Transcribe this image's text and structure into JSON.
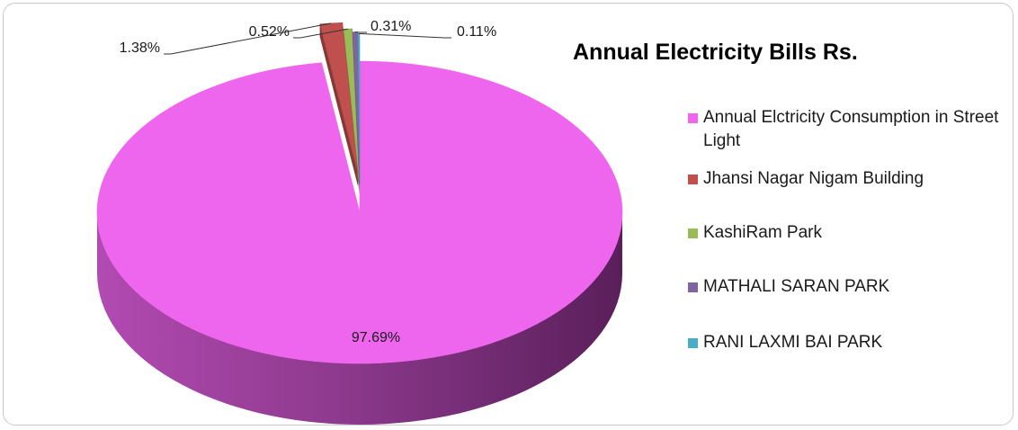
{
  "chart_data": {
    "type": "pie",
    "title": "Annual Electricity Bills Rs.",
    "series": [
      {
        "name": "Annual Elctricity Consumption in Street Light",
        "value": 97.69,
        "label": "97.69%",
        "color": "#ee66ee"
      },
      {
        "name": "Jhansi Nagar Nigam Building",
        "value": 1.38,
        "label": "1.38%",
        "color": "#c0504d"
      },
      {
        "name": "KashiRam Park",
        "value": 0.52,
        "label": "0.52%",
        "color": "#9bbb59"
      },
      {
        "name": "MATHALI SARAN PARK",
        "value": 0.31,
        "label": "0.31%",
        "color": "#8064a2"
      },
      {
        "name": "RANI LAXMI BAI PARK",
        "value": 0.11,
        "label": "0.11%",
        "color": "#4bacc6"
      }
    ],
    "legend_position": "right",
    "style": "3d-exploded"
  }
}
